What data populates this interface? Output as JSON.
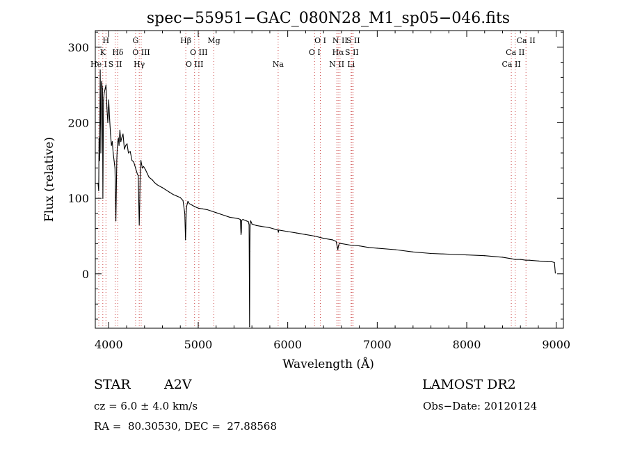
{
  "chart_data": {
    "type": "line",
    "title": "spec−55951−GAC_080N28_M1_sp05−046.fits",
    "xlabel": "Wavelength (Å)",
    "ylabel": "Flux (relative)",
    "xlim": [
      3850,
      9080
    ],
    "ylim": [
      -72,
      322
    ],
    "xticks": [
      {
        "value": 4000,
        "label": "4000"
      },
      {
        "value": 5000,
        "label": "5000"
      },
      {
        "value": 6000,
        "label": "6000"
      },
      {
        "value": 7000,
        "label": "7000"
      },
      {
        "value": 8000,
        "label": "8000"
      },
      {
        "value": 9000,
        "label": "9000"
      }
    ],
    "yticks": [
      {
        "value": 0,
        "label": "0"
      },
      {
        "value": 100,
        "label": "100"
      },
      {
        "value": 200,
        "label": "200"
      },
      {
        "value": 300,
        "label": "300"
      }
    ],
    "grid": false,
    "line_color": "#000000",
    "marker_color": "#cc4444",
    "series": [
      {
        "x": [
          3880,
          3888,
          3892,
          3898,
          3905,
          3912,
          3920,
          3930,
          3935,
          3942,
          3950,
          3960,
          3970,
          3980,
          3990,
          4000,
          4010,
          4020,
          4030,
          4040,
          4050,
          4060,
          4070,
          4080,
          4090,
          4095,
          4102,
          4108,
          4115,
          4125,
          4135,
          4145,
          4160,
          4175,
          4190,
          4205,
          4220,
          4240,
          4260,
          4280,
          4300,
          4320,
          4330,
          4336,
          4341,
          4346,
          4352,
          4360,
          4375,
          4390,
          4410,
          4430,
          4450,
          4470,
          4490,
          4510,
          4540,
          4570,
          4600,
          4640,
          4680,
          4720,
          4760,
          4800,
          4830,
          4850,
          4858,
          4862,
          4866,
          4872,
          4885,
          4900,
          4930,
          4960,
          5000,
          5050,
          5100,
          5150,
          5200,
          5250,
          5300,
          5350,
          5400,
          5450,
          5470,
          5478,
          5482,
          5486,
          5500,
          5540,
          5560,
          5568,
          5574,
          5577,
          5580,
          5586,
          5594,
          5600,
          5650,
          5700,
          5800,
          5890,
          5895,
          5900,
          6000,
          6100,
          6200,
          6300,
          6400,
          6500,
          6540,
          6555,
          6560,
          6565,
          6575,
          6600,
          6700,
          6800,
          6900,
          7000,
          7200,
          7400,
          7600,
          7800,
          8000,
          8200,
          8400,
          8500,
          8540,
          8600,
          8660,
          8700,
          8800,
          8900,
          8950,
          8980,
          8990
        ],
        "y": [
          120,
          110,
          180,
          150,
          270,
          160,
          255,
          245,
          100,
          230,
          240,
          245,
          250,
          220,
          200,
          230,
          205,
          185,
          170,
          175,
          160,
          150,
          140,
          70,
          150,
          165,
          175,
          180,
          170,
          190,
          175,
          180,
          185,
          165,
          170,
          172,
          160,
          162,
          150,
          148,
          140,
          132,
          130,
          95,
          65,
          90,
          135,
          150,
          140,
          142,
          138,
          133,
          128,
          126,
          124,
          121,
          118,
          116,
          114,
          111,
          108,
          105,
          103,
          101,
          97,
          80,
          45,
          60,
          82,
          90,
          96,
          93,
          91,
          89,
          87,
          86,
          85,
          83,
          81,
          79,
          77,
          75,
          74,
          73,
          72,
          52,
          55,
          71,
          72,
          70,
          69,
          65,
          -70,
          30,
          67,
          70,
          68,
          66,
          64,
          63,
          61,
          58,
          55,
          58,
          56,
          54,
          52,
          50,
          47,
          45,
          43,
          35,
          32,
          36,
          40,
          40,
          38,
          37,
          35,
          34,
          32,
          29,
          27,
          26,
          25,
          24,
          22,
          20,
          19,
          19,
          18,
          18,
          17,
          16,
          16,
          15,
          1
        ]
      }
    ],
    "line_markers": [
      {
        "x": 3889,
        "label": "He I",
        "row": 3
      },
      {
        "x": 3934,
        "label": "K",
        "row": 2
      },
      {
        "x": 3969,
        "label": "H",
        "row": 1
      },
      {
        "x": 4072,
        "label": "S II",
        "row": 3
      },
      {
        "x": 4102,
        "label": "Hδ",
        "row": 2
      },
      {
        "x": 4300,
        "label": "G",
        "row": 1
      },
      {
        "x": 4341,
        "label": "Hγ",
        "row": 3
      },
      {
        "x": 4363,
        "label": "O III",
        "row": 2
      },
      {
        "x": 4861,
        "label": "Hβ",
        "row": 1
      },
      {
        "x": 4959,
        "label": "O III",
        "row": 3
      },
      {
        "x": 5007,
        "label": "O III",
        "row": 2
      },
      {
        "x": 5175,
        "label": "Mg",
        "row": 1
      },
      {
        "x": 5893,
        "label": "Na",
        "row": 3
      },
      {
        "x": 6300,
        "label": "O I",
        "row": 2
      },
      {
        "x": 6364,
        "label": "O I",
        "row": 1
      },
      {
        "x": 6548,
        "label": "N II",
        "row": 3
      },
      {
        "x": 6563,
        "label": "Hα",
        "row": 2
      },
      {
        "x": 6584,
        "label": "N II",
        "row": 1
      },
      {
        "x": 6708,
        "label": "Li",
        "row": 3
      },
      {
        "x": 6717,
        "label": "S II",
        "row": 2
      },
      {
        "x": 6731,
        "label": "S II",
        "row": 1
      },
      {
        "x": 8498,
        "label": "Ca II",
        "row": 3
      },
      {
        "x": 8542,
        "label": "Ca II",
        "row": 2
      },
      {
        "x": 8662,
        "label": "Ca II",
        "row": 1
      }
    ]
  },
  "info": {
    "class_label": "STAR",
    "subclass": "A2V",
    "survey": "LAMOST DR2",
    "redshift": "cz = 6.0 ± 4.0 km/s",
    "obs_date": "Obs−Date: 20120124",
    "coordinates": "RA =  80.30530, DEC =  27.88568"
  }
}
